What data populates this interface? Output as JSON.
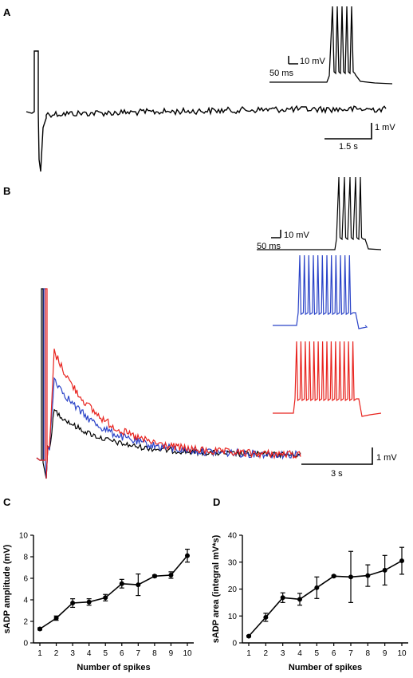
{
  "panels": {
    "A": {
      "letter": "A",
      "inset_scale": {
        "voltage": "10 mV",
        "time": "50 ms"
      },
      "main_scale": {
        "voltage": "1 mV",
        "time": "1.5 s"
      },
      "trace_color": "#000000"
    },
    "B": {
      "letter": "B",
      "inset_scale": {
        "voltage": "10 mV",
        "time": "50 ms"
      },
      "main_scale": {
        "voltage": "1 mV",
        "time": "3 s"
      },
      "trace_colors": [
        "#000000",
        "#2b44c8",
        "#e8231e"
      ]
    }
  },
  "chart_data": [
    {
      "panel": "C",
      "type": "line",
      "xlabel": "Number of spikes",
      "ylabel": "sADP amplitude (mV)",
      "x": [
        1,
        2,
        3,
        4,
        5,
        6,
        7,
        8,
        9,
        10
      ],
      "ylim": [
        0,
        10
      ],
      "yticks": [
        0,
        2,
        4,
        6,
        8,
        10
      ],
      "series": [
        {
          "values": [
            1.3,
            2.3,
            3.7,
            3.8,
            4.2,
            5.5,
            5.4,
            6.2,
            6.3,
            8.1
          ],
          "errors": [
            0.1,
            0.2,
            0.4,
            0.3,
            0.3,
            0.4,
            1.0,
            0.1,
            0.3,
            0.6
          ]
        }
      ]
    },
    {
      "panel": "D",
      "type": "line",
      "xlabel": "Number of spikes",
      "ylabel": "sADP area (integral mV*s)",
      "x": [
        1,
        2,
        3,
        4,
        5,
        6,
        7,
        8,
        9,
        10
      ],
      "ylim": [
        0,
        40
      ],
      "yticks": [
        0,
        10,
        20,
        30,
        40
      ],
      "series": [
        {
          "values": [
            2.5,
            9.5,
            16.8,
            16.2,
            20.5,
            24.8,
            24.5,
            25.0,
            27.0,
            30.5
          ],
          "errors": [
            0.3,
            1.5,
            1.8,
            2.2,
            4.0,
            0.3,
            9.5,
            4.0,
            5.5,
            5.0
          ]
        }
      ]
    }
  ],
  "letters": {
    "C": "C",
    "D": "D"
  }
}
